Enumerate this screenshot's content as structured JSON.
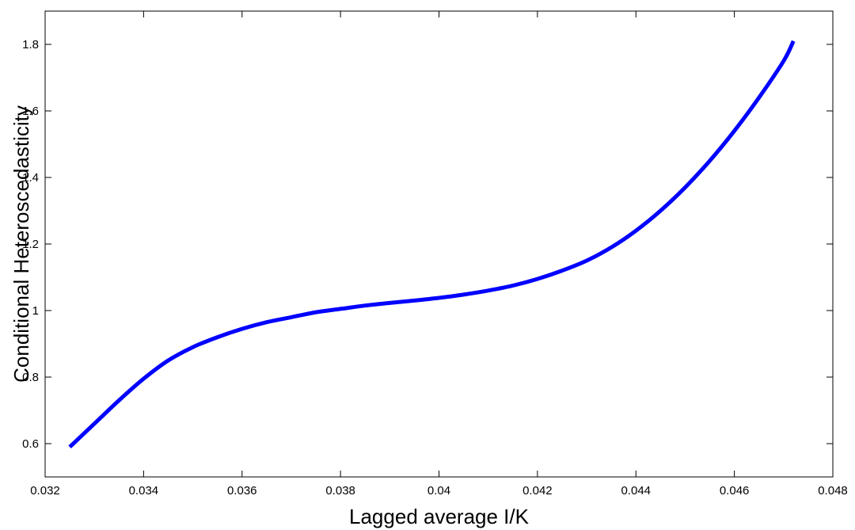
{
  "chart_data": {
    "type": "line",
    "title": "",
    "xlabel": "Lagged average I/K",
    "ylabel": "Conditional Heteroscedasticity",
    "xlim": [
      0.032,
      0.048
    ],
    "ylim": [
      0.5,
      1.9
    ],
    "xticks": [
      0.032,
      0.034,
      0.036,
      0.038,
      0.04,
      0.042,
      0.044,
      0.046,
      0.048
    ],
    "xtick_labels": [
      "0.032",
      "0.034",
      "0.036",
      "0.038",
      "0.04",
      "0.042",
      "0.044",
      "0.046",
      "0.048"
    ],
    "yticks": [
      0.6,
      0.8,
      1.0,
      1.2,
      1.4,
      1.6,
      1.8
    ],
    "ytick_labels": [
      "0.6",
      "0.8",
      "1",
      "1.2",
      "1.4",
      "1.6",
      "1.8"
    ],
    "grid": false,
    "line_color": "#0000ff",
    "series": [
      {
        "x": [
          0.0325,
          0.033,
          0.0335,
          0.034,
          0.0345,
          0.035,
          0.0355,
          0.036,
          0.0365,
          0.037,
          0.0375,
          0.038,
          0.0385,
          0.039,
          0.0395,
          0.04,
          0.0405,
          0.041,
          0.0415,
          0.042,
          0.0425,
          0.043,
          0.0435,
          0.044,
          0.0445,
          0.045,
          0.0455,
          0.046,
          0.0465,
          0.047,
          0.0472
        ],
        "values": [
          0.59,
          0.66,
          0.73,
          0.795,
          0.85,
          0.89,
          0.92,
          0.945,
          0.965,
          0.98,
          0.995,
          1.005,
          1.015,
          1.023,
          1.03,
          1.038,
          1.048,
          1.06,
          1.075,
          1.095,
          1.12,
          1.15,
          1.19,
          1.24,
          1.3,
          1.37,
          1.45,
          1.54,
          1.64,
          1.75,
          1.81
        ]
      }
    ]
  }
}
